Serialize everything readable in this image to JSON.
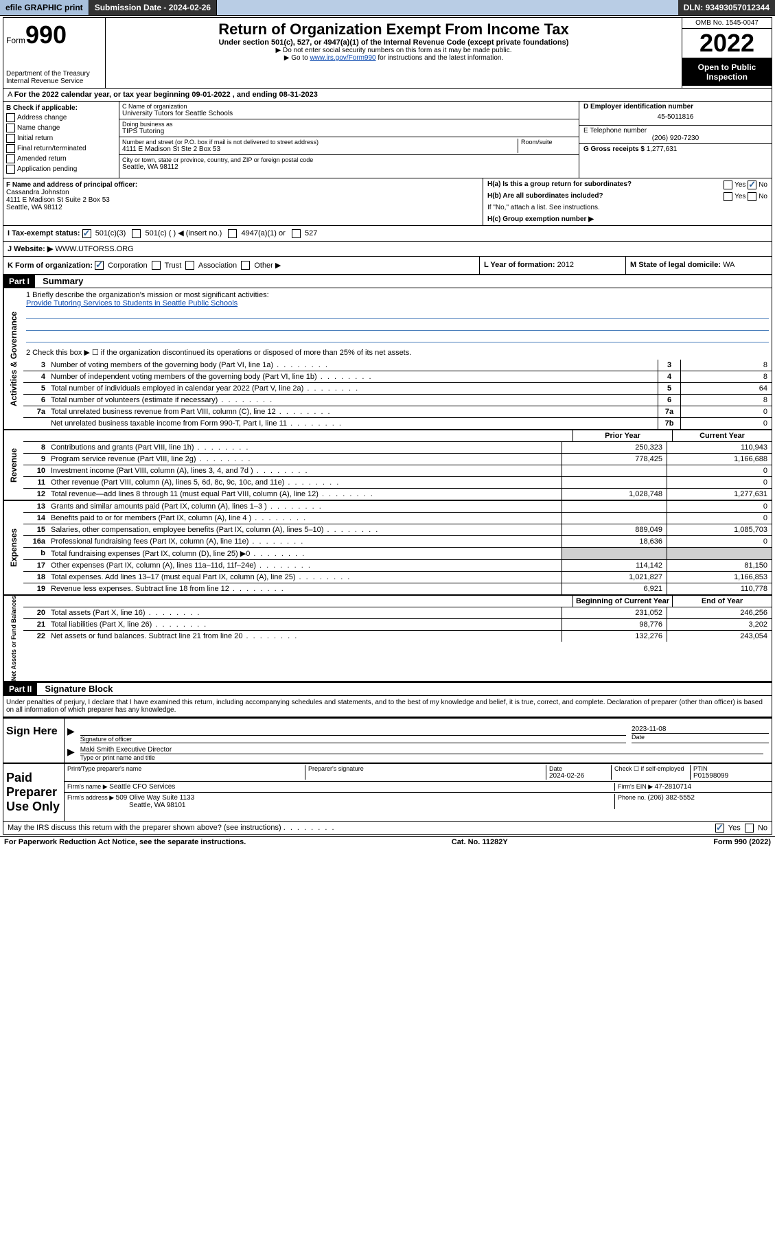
{
  "topbar": {
    "efile": "efile GRAPHIC print",
    "submission_label": "Submission Date - ",
    "submission_date": "2024-02-26",
    "dln_label": "DLN: ",
    "dln": "93493057012344"
  },
  "header": {
    "form_label": "Form",
    "form_number": "990",
    "dept": "Department of the Treasury\nInternal Revenue Service",
    "title": "Return of Organization Exempt From Income Tax",
    "subtitle": "Under section 501(c), 527, or 4947(a)(1) of the Internal Revenue Code (except private foundations)",
    "note1": "▶ Do not enter social security numbers on this form as it may be made public.",
    "note2_pre": "▶ Go to ",
    "note2_link": "www.irs.gov/Form990",
    "note2_post": " for instructions and the latest information.",
    "omb": "OMB No. 1545-0047",
    "year": "2022",
    "open": "Open to Public Inspection"
  },
  "taxyear": "For the 2022 calendar year, or tax year beginning 09-01-2022   , and ending 08-31-2023",
  "section_b": {
    "header": "B Check if applicable:",
    "items": [
      "Address change",
      "Name change",
      "Initial return",
      "Final return/terminated",
      "Amended return",
      "Application pending"
    ]
  },
  "section_c": {
    "name_label": "C Name of organization",
    "name": "University Tutors for Seattle Schools",
    "dba_label": "Doing business as",
    "dba": "TIPS Tutoring",
    "addr_label": "Number and street (or P.O. box if mail is not delivered to street address)",
    "room_label": "Room/suite",
    "addr": "4111 E Madison St Ste 2 Box 53",
    "city_label": "City or town, state or province, country, and ZIP or foreign postal code",
    "city": "Seattle, WA  98112"
  },
  "section_d": {
    "ein_label": "D Employer identification number",
    "ein": "45-5011816",
    "tel_label": "E Telephone number",
    "tel": "(206) 920-7230",
    "gross_label": "G Gross receipts $ ",
    "gross": "1,277,631"
  },
  "section_f": {
    "label": "F  Name and address of principal officer:",
    "name": "Cassandra Johnston",
    "addr1": "4111 E Madison St Suite 2 Box 53",
    "addr2": "Seattle, WA  98112"
  },
  "section_h": {
    "ha": "H(a)  Is this a group return for subordinates?",
    "ha_no": "No",
    "hb": "H(b)  Are all subordinates included?",
    "hb_note": "If \"No,\" attach a list. See instructions.",
    "hc": "H(c)  Group exemption number ▶"
  },
  "status": {
    "i_label": "I   Tax-exempt status:",
    "opt1": "501(c)(3)",
    "opt2": "501(c) (    ) ◀ (insert no.)",
    "opt3": "4947(a)(1) or",
    "opt4": "527",
    "j_label": "J   Website: ▶ ",
    "website": "WWW.UTFORSS.ORG"
  },
  "korg": {
    "k_label": "K Form of organization:",
    "opts": [
      "Corporation",
      "Trust",
      "Association",
      "Other ▶"
    ],
    "l_label": "L Year of formation: ",
    "l_val": "2012",
    "m_label": "M State of legal domicile: ",
    "m_val": "WA"
  },
  "part1": {
    "header": "Part I",
    "title": "Summary",
    "line1_label": "1   Briefly describe the organization's mission or most significant activities:",
    "line1_text": "Provide Tutoring Services to Students in Seattle Public Schools",
    "line2": "2   Check this box ▶ ☐  if the organization discontinued its operations or disposed of more than 25% of its net assets."
  },
  "governance": {
    "label": "Activities & Governance",
    "rows": [
      {
        "n": "3",
        "label": "Number of voting members of the governing body (Part VI, line 1a)",
        "box": "3",
        "val": "8"
      },
      {
        "n": "4",
        "label": "Number of independent voting members of the governing body (Part VI, line 1b)",
        "box": "4",
        "val": "8"
      },
      {
        "n": "5",
        "label": "Total number of individuals employed in calendar year 2022 (Part V, line 2a)",
        "box": "5",
        "val": "64"
      },
      {
        "n": "6",
        "label": "Total number of volunteers (estimate if necessary)",
        "box": "6",
        "val": "8"
      },
      {
        "n": "7a",
        "label": "Total unrelated business revenue from Part VIII, column (C), line 12",
        "box": "7a",
        "val": "0"
      },
      {
        "n": "",
        "label": "Net unrelated business taxable income from Form 990-T, Part I, line 11",
        "box": "7b",
        "val": "0"
      }
    ]
  },
  "revenue": {
    "label": "Revenue",
    "hdr_prior": "Prior Year",
    "hdr_curr": "Current Year",
    "rows": [
      {
        "n": "8",
        "label": "Contributions and grants (Part VIII, line 1h)",
        "prior": "250,323",
        "curr": "110,943"
      },
      {
        "n": "9",
        "label": "Program service revenue (Part VIII, line 2g)",
        "prior": "778,425",
        "curr": "1,166,688"
      },
      {
        "n": "10",
        "label": "Investment income (Part VIII, column (A), lines 3, 4, and 7d )",
        "prior": "",
        "curr": "0"
      },
      {
        "n": "11",
        "label": "Other revenue (Part VIII, column (A), lines 5, 6d, 8c, 9c, 10c, and 11e)",
        "prior": "",
        "curr": "0"
      },
      {
        "n": "12",
        "label": "Total revenue—add lines 8 through 11 (must equal Part VIII, column (A), line 12)",
        "prior": "1,028,748",
        "curr": "1,277,631"
      }
    ]
  },
  "expenses": {
    "label": "Expenses",
    "rows": [
      {
        "n": "13",
        "label": "Grants and similar amounts paid (Part IX, column (A), lines 1–3 )",
        "prior": "",
        "curr": "0"
      },
      {
        "n": "14",
        "label": "Benefits paid to or for members (Part IX, column (A), line 4 )",
        "prior": "",
        "curr": "0"
      },
      {
        "n": "15",
        "label": "Salaries, other compensation, employee benefits (Part IX, column (A), lines 5–10)",
        "prior": "889,049",
        "curr": "1,085,703"
      },
      {
        "n": "16a",
        "label": "Professional fundraising fees (Part IX, column (A), line 11e)",
        "prior": "18,636",
        "curr": "0"
      },
      {
        "n": "b",
        "label": "Total fundraising expenses (Part IX, column (D), line 25) ▶0",
        "prior": "",
        "curr": "",
        "shaded": true
      },
      {
        "n": "17",
        "label": "Other expenses (Part IX, column (A), lines 11a–11d, 11f–24e)",
        "prior": "114,142",
        "curr": "81,150"
      },
      {
        "n": "18",
        "label": "Total expenses. Add lines 13–17 (must equal Part IX, column (A), line 25)",
        "prior": "1,021,827",
        "curr": "1,166,853"
      },
      {
        "n": "19",
        "label": "Revenue less expenses. Subtract line 18 from line 12",
        "prior": "6,921",
        "curr": "110,778"
      }
    ]
  },
  "netassets": {
    "label": "Net Assets or Fund Balances",
    "hdr_prior": "Beginning of Current Year",
    "hdr_curr": "End of Year",
    "rows": [
      {
        "n": "20",
        "label": "Total assets (Part X, line 16)",
        "prior": "231,052",
        "curr": "246,256"
      },
      {
        "n": "21",
        "label": "Total liabilities (Part X, line 26)",
        "prior": "98,776",
        "curr": "3,202"
      },
      {
        "n": "22",
        "label": "Net assets or fund balances. Subtract line 21 from line 20",
        "prior": "132,276",
        "curr": "243,054"
      }
    ]
  },
  "part2": {
    "header": "Part II",
    "title": "Signature Block",
    "declaration": "Under penalties of perjury, I declare that I have examined this return, including accompanying schedules and statements, and to the best of my knowledge and belief, it is true, correct, and complete. Declaration of preparer (other than officer) is based on all information of which preparer has any knowledge."
  },
  "sign": {
    "left": "Sign Here",
    "sig_label": "Signature of officer",
    "date_label": "Date",
    "date": "2023-11-08",
    "name": "Maki Smith  Executive Director",
    "name_label": "Type or print name and title"
  },
  "preparer": {
    "left": "Paid Preparer Use Only",
    "col1": "Print/Type preparer's name",
    "col2": "Preparer's signature",
    "col3_label": "Date",
    "col3": "2024-02-26",
    "col4": "Check ☐ if self-employed",
    "col5_label": "PTIN",
    "col5": "P01598099",
    "firm_name_label": "Firm's name    ▶ ",
    "firm_name": "Seattle CFO Services",
    "firm_ein_label": "Firm's EIN ▶ ",
    "firm_ein": "47-2810714",
    "firm_addr_label": "Firm's address ▶ ",
    "firm_addr1": "509 Olive Way Suite 1133",
    "firm_addr2": "Seattle, WA  98101",
    "phone_label": "Phone no. ",
    "phone": "(206) 382-5552",
    "discuss": "May the IRS discuss this return with the preparer shown above? (see instructions)",
    "discuss_yes": "Yes",
    "discuss_no": "No"
  },
  "footer": {
    "left": "For Paperwork Reduction Act Notice, see the separate instructions.",
    "mid": "Cat. No. 11282Y",
    "right": "Form 990 (2022)"
  }
}
